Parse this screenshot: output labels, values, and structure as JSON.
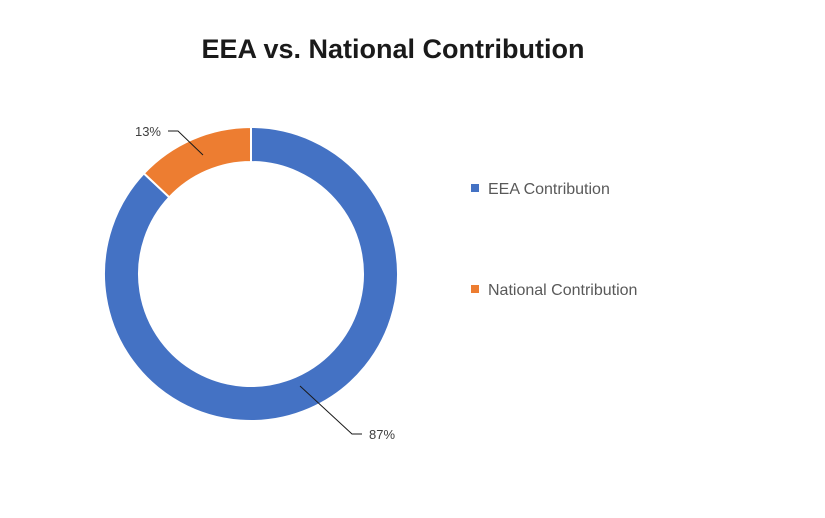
{
  "chart_data": {
    "type": "pie",
    "variant": "doughnut",
    "title": "EEA vs. National Contribution",
    "legend_position": "right",
    "slices": [
      {
        "label": "EEA Contribution",
        "value": 87,
        "display": "87%",
        "color": "#4472C4"
      },
      {
        "label": "National Contribution",
        "value": 13,
        "display": "13%",
        "color": "#ED7D31"
      }
    ]
  }
}
